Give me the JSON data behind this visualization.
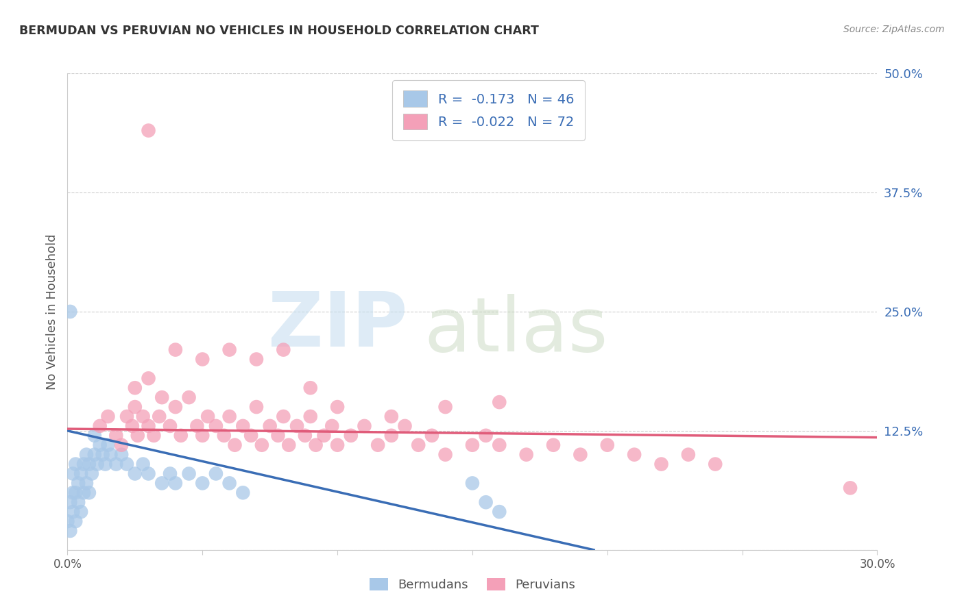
{
  "title": "BERMUDAN VS PERUVIAN NO VEHICLES IN HOUSEHOLD CORRELATION CHART",
  "source": "Source: ZipAtlas.com",
  "ylabel": "No Vehicles in Household",
  "xlim": [
    0.0,
    0.3
  ],
  "ylim": [
    0.0,
    0.5
  ],
  "bermudan_color": "#a8c8e8",
  "peruvian_color": "#f4a0b8",
  "bermudan_line_color": "#3a6db5",
  "peruvian_line_color": "#e05c7a",
  "legend_text_color": "#3a6db5",
  "bermudan_R": -0.173,
  "bermudan_N": 46,
  "peruvian_R": -0.022,
  "peruvian_N": 72,
  "grid_color": "#cccccc",
  "background_color": "#ffffff",
  "bermudan_x": [
    0.0,
    0.001,
    0.001,
    0.002,
    0.002,
    0.002,
    0.003,
    0.003,
    0.003,
    0.004,
    0.004,
    0.005,
    0.005,
    0.006,
    0.006,
    0.007,
    0.007,
    0.008,
    0.008,
    0.009,
    0.01,
    0.01,
    0.011,
    0.012,
    0.013,
    0.014,
    0.015,
    0.016,
    0.018,
    0.02,
    0.022,
    0.025,
    0.028,
    0.03,
    0.035,
    0.038,
    0.04,
    0.045,
    0.05,
    0.055,
    0.06,
    0.065,
    0.001,
    0.15,
    0.155,
    0.16
  ],
  "bermudan_y": [
    0.03,
    0.02,
    0.05,
    0.04,
    0.06,
    0.08,
    0.03,
    0.06,
    0.09,
    0.05,
    0.07,
    0.04,
    0.08,
    0.06,
    0.09,
    0.07,
    0.1,
    0.06,
    0.09,
    0.08,
    0.1,
    0.12,
    0.09,
    0.11,
    0.1,
    0.09,
    0.11,
    0.1,
    0.09,
    0.1,
    0.09,
    0.08,
    0.09,
    0.08,
    0.07,
    0.08,
    0.07,
    0.08,
    0.07,
    0.08,
    0.07,
    0.06,
    0.25,
    0.07,
    0.05,
    0.04
  ],
  "peruvian_x": [
    0.012,
    0.015,
    0.018,
    0.02,
    0.022,
    0.024,
    0.025,
    0.026,
    0.028,
    0.03,
    0.032,
    0.034,
    0.035,
    0.038,
    0.04,
    0.042,
    0.045,
    0.048,
    0.05,
    0.052,
    0.055,
    0.058,
    0.06,
    0.062,
    0.065,
    0.068,
    0.07,
    0.072,
    0.075,
    0.078,
    0.08,
    0.082,
    0.085,
    0.088,
    0.09,
    0.092,
    0.095,
    0.098,
    0.1,
    0.105,
    0.11,
    0.115,
    0.12,
    0.125,
    0.13,
    0.135,
    0.14,
    0.15,
    0.155,
    0.16,
    0.17,
    0.18,
    0.19,
    0.2,
    0.21,
    0.22,
    0.23,
    0.24,
    0.025,
    0.03,
    0.04,
    0.05,
    0.06,
    0.07,
    0.08,
    0.09,
    0.1,
    0.12,
    0.14,
    0.16,
    0.29,
    0.03
  ],
  "peruvian_y": [
    0.13,
    0.14,
    0.12,
    0.11,
    0.14,
    0.13,
    0.15,
    0.12,
    0.14,
    0.13,
    0.12,
    0.14,
    0.16,
    0.13,
    0.15,
    0.12,
    0.16,
    0.13,
    0.12,
    0.14,
    0.13,
    0.12,
    0.14,
    0.11,
    0.13,
    0.12,
    0.15,
    0.11,
    0.13,
    0.12,
    0.14,
    0.11,
    0.13,
    0.12,
    0.14,
    0.11,
    0.12,
    0.13,
    0.11,
    0.12,
    0.13,
    0.11,
    0.12,
    0.13,
    0.11,
    0.12,
    0.1,
    0.11,
    0.12,
    0.11,
    0.1,
    0.11,
    0.1,
    0.11,
    0.1,
    0.09,
    0.1,
    0.09,
    0.17,
    0.18,
    0.21,
    0.2,
    0.21,
    0.2,
    0.21,
    0.17,
    0.15,
    0.14,
    0.15,
    0.155,
    0.065,
    0.44
  ],
  "berm_line_x0": 0.0,
  "berm_line_y0": 0.125,
  "berm_line_x1": 0.195,
  "berm_line_y1": 0.0,
  "peru_line_x0": 0.0,
  "peru_line_y0": 0.127,
  "peru_line_x1": 0.3,
  "peru_line_y1": 0.118
}
